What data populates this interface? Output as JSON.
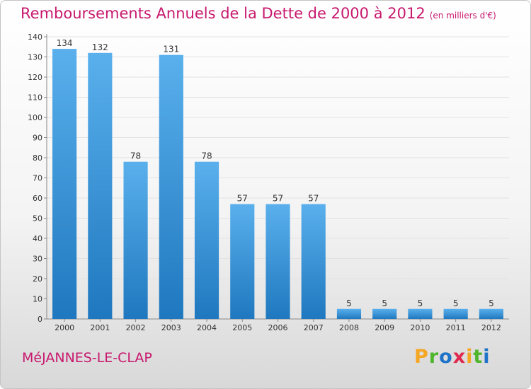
{
  "title": "Remboursements Annuels de la Dette de 2000 à 2012",
  "title_unit": "(en milliers d'€)",
  "city": "MéJANNES-LE-CLAP",
  "logo": {
    "letters": [
      "P",
      "r",
      "o",
      "x",
      "i",
      "t",
      "i"
    ],
    "colors": [
      "#f5a623",
      "#4fb52c",
      "#1e73c8",
      "#e0284f",
      "#f5a623",
      "#4fb52c",
      "#1e73c8"
    ]
  },
  "colors": {
    "bar_light": "#5ab0ec",
    "bar_dark": "#1f78bf",
    "accent": "#c8196e"
  },
  "chart_data": {
    "type": "bar",
    "categories": [
      "2000",
      "2001",
      "2002",
      "2003",
      "2004",
      "2005",
      "2006",
      "2007",
      "2008",
      "2009",
      "2010",
      "2011",
      "2012"
    ],
    "values": [
      134,
      132,
      78,
      131,
      78,
      57,
      57,
      57,
      5,
      5,
      5,
      5,
      5
    ],
    "data_labels": [
      "134",
      "132",
      "78",
      "131",
      "78",
      "57",
      "57",
      "57",
      "5",
      "5",
      "5",
      "5",
      "5"
    ],
    "yticks": [
      "0",
      "10",
      "20",
      "30",
      "40",
      "50",
      "60",
      "70",
      "80",
      "90",
      "100",
      "110",
      "120",
      "130",
      "140"
    ],
    "ylim": [
      0,
      140
    ],
    "grid": true
  }
}
